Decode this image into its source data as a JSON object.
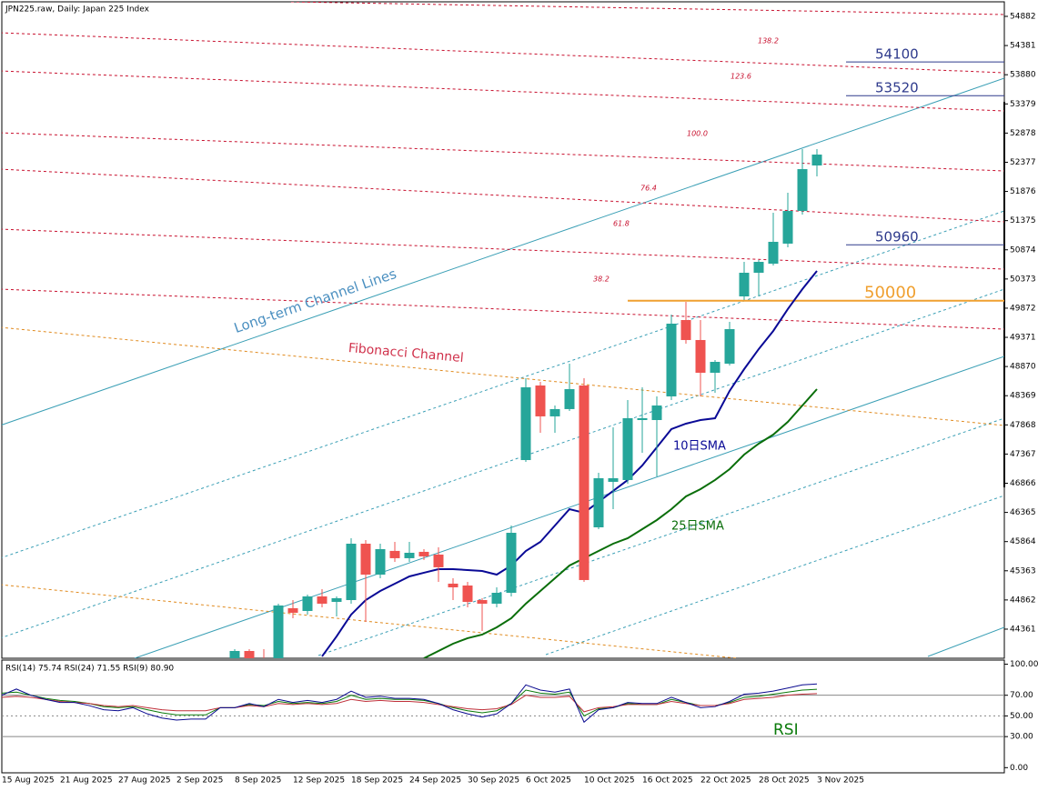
{
  "chart_data": [
    {
      "type": "candlestick",
      "title": "JPN225.raw, Daily:  Japan 225 Index",
      "categories": [
        "15 Aug 2025",
        null,
        null,
        null,
        "21 Aug 2025",
        null,
        null,
        null,
        "27 Aug 2025",
        null,
        null,
        null,
        "2 Sep 2025",
        null,
        null,
        null,
        "8 Sep 2025",
        null,
        null,
        null,
        "12 Sep 2025",
        null,
        null,
        null,
        "18 Sep 2025",
        null,
        null,
        null,
        "24 Sep 2025",
        null,
        null,
        null,
        "30 Sep 2025",
        null,
        null,
        null,
        "6 Oct 2025",
        null,
        null,
        null,
        "10 Oct 2025",
        null,
        null,
        null,
        "16 Oct 2025",
        null,
        null,
        null,
        "22 Oct 2025",
        null,
        null,
        null,
        "28 Oct 2025",
        null,
        null,
        null,
        "3 Nov 2025"
      ],
      "open": [
        null,
        null,
        null,
        null,
        null,
        null,
        null,
        null,
        null,
        null,
        null,
        null,
        null,
        null,
        null,
        null,
        43830,
        43986,
        43830,
        43861,
        44720,
        44673,
        44923,
        44829,
        44860,
        45828,
        45297,
        45704,
        45579,
        45688,
        45641,
        45142,
        45110,
        44860,
        44798,
        44985,
        47264,
        48544,
        48014,
        48139,
        48544,
        46109,
        46890,
        46921,
        47951,
        47951,
        48357,
        49668,
        49325,
        48763,
        48919,
        50074,
        50480,
        50636,
        50980,
        51541,
        52322
      ],
      "high": [
        null,
        null,
        null,
        null,
        null,
        null,
        null,
        null,
        null,
        null,
        null,
        null,
        null,
        null,
        null,
        null,
        44017,
        44017,
        44017,
        44798,
        44860,
        44954,
        45048,
        44923,
        45922,
        45891,
        45828,
        45860,
        45860,
        45735,
        45766,
        45235,
        45173,
        44892,
        45079,
        46140,
        48669,
        48606,
        48201,
        48919,
        48669,
        47046,
        47826,
        48295,
        48513,
        48357,
        49762,
        49980,
        49668,
        48981,
        49637,
        50667,
        50698,
        51510,
        51854,
        52603,
        52603
      ],
      "low": [
        null,
        null,
        null,
        null,
        null,
        null,
        null,
        null,
        null,
        null,
        null,
        null,
        null,
        null,
        null,
        null,
        43768,
        43690,
        43611,
        43799,
        44548,
        44611,
        44736,
        44580,
        44798,
        44486,
        45235,
        45516,
        45516,
        45548,
        45173,
        44860,
        44736,
        44330,
        44736,
        44923,
        47233,
        47733,
        47733,
        48107,
        45173,
        46078,
        46421,
        46858,
        47389,
        46983,
        48295,
        49262,
        48357,
        48420,
        48888,
        50012,
        50074,
        50605,
        50917,
        51479,
        52135
      ],
      "close": [
        null,
        null,
        null,
        null,
        null,
        null,
        null,
        null,
        null,
        null,
        null,
        null,
        null,
        null,
        null,
        null,
        43986,
        43799,
        43736,
        44767,
        44642,
        44923,
        44798,
        44892,
        45828,
        45297,
        45735,
        45579,
        45672,
        45610,
        45423,
        45079,
        44829,
        44798,
        44985,
        46015,
        48513,
        48014,
        48139,
        48482,
        45204,
        46952,
        46952,
        47983,
        47983,
        48201,
        49606,
        49325,
        48763,
        48950,
        49512,
        50480,
        50667,
        51011,
        51541,
        52259,
        52509
      ],
      "up_color": "#26a69a",
      "down_color": "#ef5350",
      "series": [
        {
          "name": "10日SMA",
          "color": "#0a0a96",
          "values": [
            null,
            null,
            null,
            null,
            null,
            null,
            null,
            null,
            null,
            null,
            null,
            null,
            null,
            null,
            null,
            null,
            null,
            null,
            null,
            null,
            null,
            null,
            43893,
            44236,
            44611,
            44860,
            45016,
            45141,
            45266,
            45329,
            45391,
            45391,
            45376,
            45360,
            45297,
            45454,
            45703,
            45859,
            46140,
            46421,
            46359,
            46546,
            46734,
            46921,
            47171,
            47483,
            47795,
            47889,
            47951,
            47982,
            48451,
            48825,
            49169,
            49481,
            49856,
            50199,
            50511
          ]
        },
        {
          "name": "25日SMA",
          "color": "#0a6e0a",
          "values": [
            null,
            null,
            null,
            null,
            null,
            null,
            null,
            null,
            null,
            null,
            null,
            null,
            null,
            null,
            null,
            null,
            null,
            null,
            null,
            null,
            null,
            null,
            null,
            null,
            null,
            null,
            null,
            null,
            null,
            43861,
            43986,
            44111,
            44205,
            44267,
            44392,
            44548,
            44798,
            45016,
            45235,
            45454,
            45578,
            45703,
            45828,
            45922,
            46078,
            46234,
            46421,
            46640,
            46765,
            46921,
            47108,
            47358,
            47545,
            47701,
            47920,
            48201,
            48482
          ]
        }
      ],
      "levels": [
        {
          "value": 54100,
          "color": "#2e3a8c"
        },
        {
          "value": 53520,
          "color": "#2e3a8c"
        },
        {
          "value": 50960,
          "color": "#2e3a8c"
        },
        {
          "value": 50000,
          "color": "#f0a030"
        }
      ],
      "fib_labels": [
        "138.2",
        "123.6",
        "100.0",
        "76.4",
        "61.8",
        "38.2"
      ],
      "annotations": [
        "Long-term Channel Lines",
        "Fibonacci Channel"
      ],
      "ylim": [
        43861,
        55163
      ],
      "yticks": [
        44361,
        44862,
        45363,
        45864,
        46365,
        46866,
        47367,
        47868,
        48369,
        48870,
        49371,
        49872,
        50373,
        50874,
        51375,
        51876,
        52377,
        52878,
        53379,
        53880,
        54381,
        54882
      ]
    },
    {
      "type": "line",
      "title": "RSI(14) 75.74 RSI(24) 71.55 RSI(9) 80.90",
      "label": "RSI",
      "series": [
        {
          "color": "#0a7a0a",
          "values": [
            72,
            73,
            70,
            67,
            65,
            64,
            62,
            59,
            58,
            59,
            56,
            53,
            51,
            51,
            51,
            58,
            58,
            61,
            60,
            64,
            62,
            63,
            62,
            64,
            70,
            66,
            67,
            66,
            66,
            65,
            62,
            58,
            55,
            53,
            55,
            62,
            75,
            72,
            71,
            73,
            50,
            57,
            58,
            62,
            61,
            61,
            66,
            63,
            60,
            60,
            63,
            68,
            69,
            71,
            73,
            75,
            75.74
          ]
        },
        {
          "color": "#c0303a",
          "values": [
            68,
            69,
            68,
            66,
            64,
            63,
            62,
            60,
            59,
            60,
            58,
            56,
            55,
            55,
            55,
            58,
            58,
            60,
            59,
            62,
            61,
            62,
            61,
            62,
            66,
            64,
            65,
            64,
            64,
            63,
            61,
            59,
            57,
            56,
            57,
            61,
            70,
            68,
            68,
            69,
            54,
            58,
            59,
            61,
            61,
            61,
            64,
            62,
            60,
            60,
            62,
            66,
            67,
            68,
            70,
            71,
            71.55
          ]
        },
        {
          "color": "#0a0a90",
          "values": [
            70,
            76,
            70,
            66,
            63,
            63,
            60,
            56,
            55,
            58,
            52,
            48,
            46,
            47,
            47,
            58,
            58,
            62,
            59,
            66,
            63,
            65,
            63,
            66,
            74,
            68,
            69,
            67,
            67,
            66,
            62,
            56,
            52,
            49,
            52,
            62,
            80,
            75,
            73,
            76,
            44,
            56,
            58,
            63,
            62,
            62,
            68,
            63,
            58,
            59,
            64,
            71,
            72,
            74,
            77,
            80,
            80.9
          ]
        }
      ],
      "levels": [
        {
          "value": 70
        },
        {
          "value": 50,
          "dash": true
        },
        {
          "value": 30
        }
      ],
      "ylim": [
        -5,
        104
      ],
      "yticks": [
        {
          "value": 100,
          "label": "100.00"
        },
        {
          "value": 70,
          "label": "70.00"
        },
        {
          "value": 50,
          "label": "50.00"
        },
        {
          "value": 30,
          "label": "30.00"
        },
        {
          "value": 0,
          "label": "0.00"
        }
      ]
    }
  ]
}
